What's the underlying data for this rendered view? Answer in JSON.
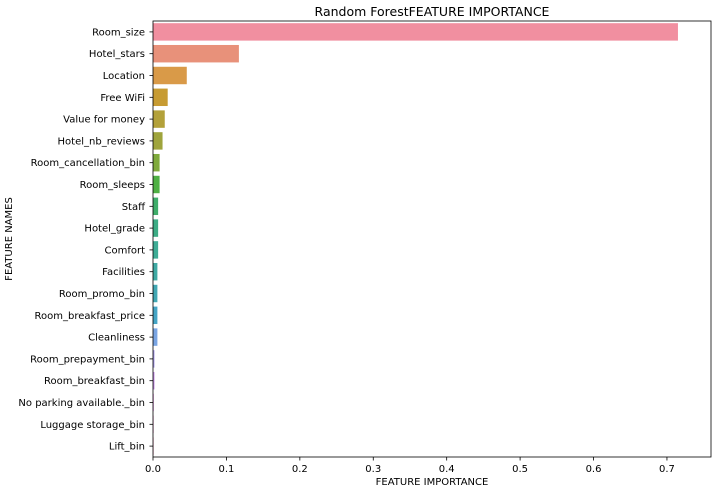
{
  "chart_data": {
    "type": "bar",
    "orientation": "horizontal",
    "title": "Random ForestFEATURE IMPORTANCE",
    "xlabel": "FEATURE IMPORTANCE",
    "ylabel": "FEATURE NAMES",
    "xlim": [
      0,
      0.76
    ],
    "xticks": [
      "0.0",
      "0.1",
      "0.2",
      "0.3",
      "0.4",
      "0.5",
      "0.6",
      "0.7"
    ],
    "xtick_values": [
      0,
      0.1,
      0.2,
      0.3,
      0.4,
      0.5,
      0.6,
      0.7
    ],
    "grid": false,
    "legend": "none",
    "categories": [
      "Room_size",
      "Hotel_stars",
      "Location",
      "Free WiFi",
      "Value for money",
      "Hotel_nb_reviews",
      "Room_cancellation_bin",
      "Room_sleeps",
      "Staff",
      "Hotel_grade",
      "Comfort",
      "Facilities",
      "Room_promo_bin",
      "Room_breakfast_price",
      "Cleanliness",
      "Room_prepayment_bin",
      "Room_breakfast_bin",
      "No parking available._bin",
      "Luggage storage_bin",
      "Lift_bin"
    ],
    "values": [
      0.715,
      0.117,
      0.046,
      0.02,
      0.016,
      0.013,
      0.009,
      0.009,
      0.007,
      0.007,
      0.007,
      0.006,
      0.006,
      0.006,
      0.006,
      0.002,
      0.002,
      0.001,
      0.0005,
      0.0003
    ],
    "colors": [
      "#f18fa0",
      "#e8917a",
      "#d99a48",
      "#c79b32",
      "#b3a13a",
      "#9fa43c",
      "#7faa3c",
      "#4fb044",
      "#3fad6a",
      "#3dac85",
      "#3eac95",
      "#40aaa4",
      "#42a8b4",
      "#45a5c5",
      "#7aa5e3",
      "#a89bea",
      "#c48de6",
      "#dd83dc",
      "#ea86c7",
      "#f08bb4"
    ]
  }
}
